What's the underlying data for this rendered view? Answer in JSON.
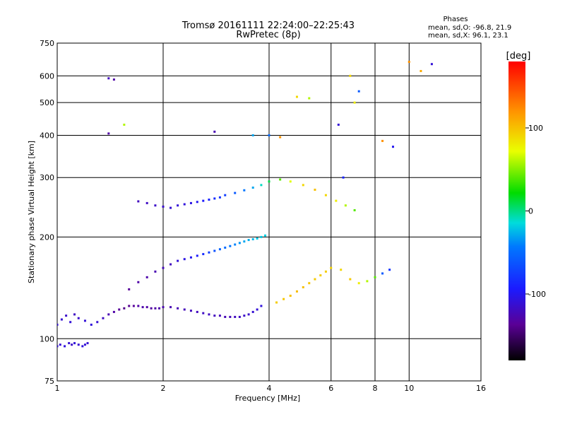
{
  "chart_data": {
    "type": "scatter",
    "title": "Tromsø 20161111 22:24:00–22:25:43",
    "subtitle": "RwPretec (8p)",
    "xlabel": "Frequency [MHz]",
    "ylabel": "Stationary phase Virtual Height [km]",
    "x_scale": "log",
    "y_scale": "log",
    "xlim": [
      1,
      16
    ],
    "ylim": [
      75,
      750
    ],
    "x_ticks": [
      1,
      2,
      4,
      6,
      8,
      10,
      16
    ],
    "y_ticks": [
      75,
      100,
      200,
      300,
      400,
      500,
      600,
      750
    ],
    "x_grid": [
      2,
      4,
      6,
      8,
      10
    ],
    "y_grid": [
      100,
      200,
      300,
      400,
      500,
      600
    ],
    "grid": true,
    "stats": {
      "heading": "Phases",
      "line_o": "mean, sd,O:  -96.8, 21.9",
      "line_x": "mean, sd,X:  96.1, 23.1"
    },
    "colorbar": {
      "label": "[deg]",
      "range": [
        -180,
        180
      ],
      "ticks": [
        100,
        0,
        -100
      ],
      "placement": "right"
    },
    "series": [
      {
        "trace": "o-mode lower",
        "x": [
          1.0,
          1.03,
          1.06,
          1.09,
          1.12,
          1.15,
          1.2,
          1.25,
          1.3,
          1.35,
          1.4,
          1.45,
          1.5,
          1.55,
          1.6,
          1.65,
          1.7,
          1.75,
          1.8,
          1.85,
          1.9,
          1.95,
          2.0,
          2.1,
          2.2,
          2.3,
          2.4,
          2.5,
          2.6,
          2.7,
          2.8,
          2.9,
          3.0,
          3.1,
          3.2,
          3.3,
          3.4,
          3.5,
          3.6,
          3.7,
          3.8
        ],
        "y": [
          110,
          114,
          117,
          112,
          118,
          115,
          113,
          110,
          112,
          115,
          118,
          120,
          122,
          123,
          125,
          125,
          125,
          124,
          124,
          123,
          123,
          123,
          124,
          124,
          123,
          122,
          121,
          120,
          119,
          118,
          117,
          117,
          116,
          116,
          116,
          116,
          117,
          118,
          120,
          122,
          125
        ],
        "phase": [
          -110,
          -112,
          -115,
          -110,
          -118,
          -115,
          -110,
          -108,
          -112,
          -118,
          -125,
          -130,
          -135,
          -140,
          -138,
          -135,
          -130,
          -128,
          -130,
          -132,
          -130,
          -128,
          -126,
          -125,
          -124,
          -122,
          -120,
          -120,
          -118,
          -118,
          -120,
          -122,
          -124,
          -122,
          -120,
          -118,
          -116,
          -115,
          -112,
          -110,
          -108
        ]
      },
      {
        "trace": "low-frequency echoes",
        "x": [
          1.0,
          1.02,
          1.05,
          1.08,
          1.1,
          1.12,
          1.15,
          1.18,
          1.2,
          1.22
        ],
        "y": [
          95,
          96,
          95,
          97,
          96,
          97,
          96,
          95,
          96,
          97
        ],
        "phase": [
          -110,
          -112,
          -108,
          -112,
          -115,
          -110,
          -112,
          -108,
          -110,
          -112
        ]
      },
      {
        "trace": "o-mode upper",
        "x": [
          1.6,
          1.7,
          1.8,
          1.9,
          2.0,
          2.1,
          2.2,
          2.3,
          2.4,
          2.5,
          2.6,
          2.7,
          2.8,
          2.9,
          3.0,
          3.1,
          3.2,
          3.3,
          3.4,
          3.5,
          3.6,
          3.7,
          3.8,
          3.9
        ],
        "y": [
          140,
          147,
          152,
          158,
          162,
          166,
          170,
          172,
          174,
          176,
          178,
          180,
          182,
          184,
          186,
          188,
          190,
          192,
          194,
          196,
          197,
          198,
          200,
          202
        ],
        "phase": [
          -135,
          -130,
          -128,
          -125,
          -122,
          -120,
          -110,
          -105,
          -100,
          -95,
          -85,
          -75,
          -65,
          -55,
          -50,
          -45,
          -40,
          -35,
          -30,
          -28,
          -25,
          -20,
          -20,
          -18
        ]
      },
      {
        "trace": "x-mode",
        "x": [
          4.2,
          4.4,
          4.6,
          4.8,
          5.0,
          5.2,
          5.4,
          5.6,
          5.8,
          6.0,
          6.4,
          6.8,
          7.2,
          7.6,
          8.0,
          8.4,
          8.8
        ],
        "y": [
          128,
          131,
          134,
          138,
          142,
          146,
          150,
          154,
          158,
          162,
          160,
          150,
          146,
          148,
          152,
          156,
          160
        ],
        "phase": [
          95,
          98,
          100,
          102,
          100,
          98,
          96,
          95,
          94,
          92,
          90,
          96,
          80,
          60,
          40,
          -60,
          -80
        ]
      },
      {
        "trace": "f-layer diffuse",
        "x": [
          1.7,
          1.8,
          1.9,
          2.0,
          2.1,
          2.2,
          2.3,
          2.4,
          2.5,
          2.6,
          2.7,
          2.8,
          2.9,
          3.0,
          3.2,
          3.4,
          3.6,
          3.8,
          4.0,
          4.3,
          4.6,
          5.0,
          5.4,
          5.8,
          6.2,
          6.6,
          7.0
        ],
        "y": [
          255,
          252,
          248,
          246,
          244,
          248,
          250,
          252,
          254,
          256,
          258,
          260,
          262,
          266,
          270,
          275,
          280,
          285,
          292,
          296,
          292,
          285,
          276,
          266,
          256,
          248,
          240
        ],
        "phase": [
          -120,
          -118,
          -116,
          -114,
          -112,
          -110,
          -108,
          -105,
          -100,
          -95,
          -90,
          -85,
          -80,
          -75,
          -60,
          -45,
          -30,
          -10,
          10,
          40,
          70,
          90,
          100,
          90,
          80,
          60,
          40
        ]
      },
      {
        "trace": "sporadic high echoes",
        "x": [
          1.4,
          1.45,
          1.4,
          1.55,
          2.8,
          3.6,
          4.0,
          4.3,
          4.8,
          5.2,
          6.3,
          6.8,
          7.2,
          8.4,
          9.0,
          10.0,
          10.8,
          11.6,
          7.0,
          6.5
        ],
        "y": [
          590,
          585,
          405,
          430,
          410,
          400,
          400,
          395,
          520,
          515,
          430,
          600,
          540,
          385,
          370,
          660,
          620,
          650,
          500,
          300
        ],
        "phase": [
          -120,
          -130,
          -130,
          60,
          -125,
          -30,
          -50,
          120,
          90,
          60,
          -110,
          90,
          -60,
          120,
          -100,
          120,
          110,
          -110,
          80,
          -90
        ]
      }
    ]
  }
}
